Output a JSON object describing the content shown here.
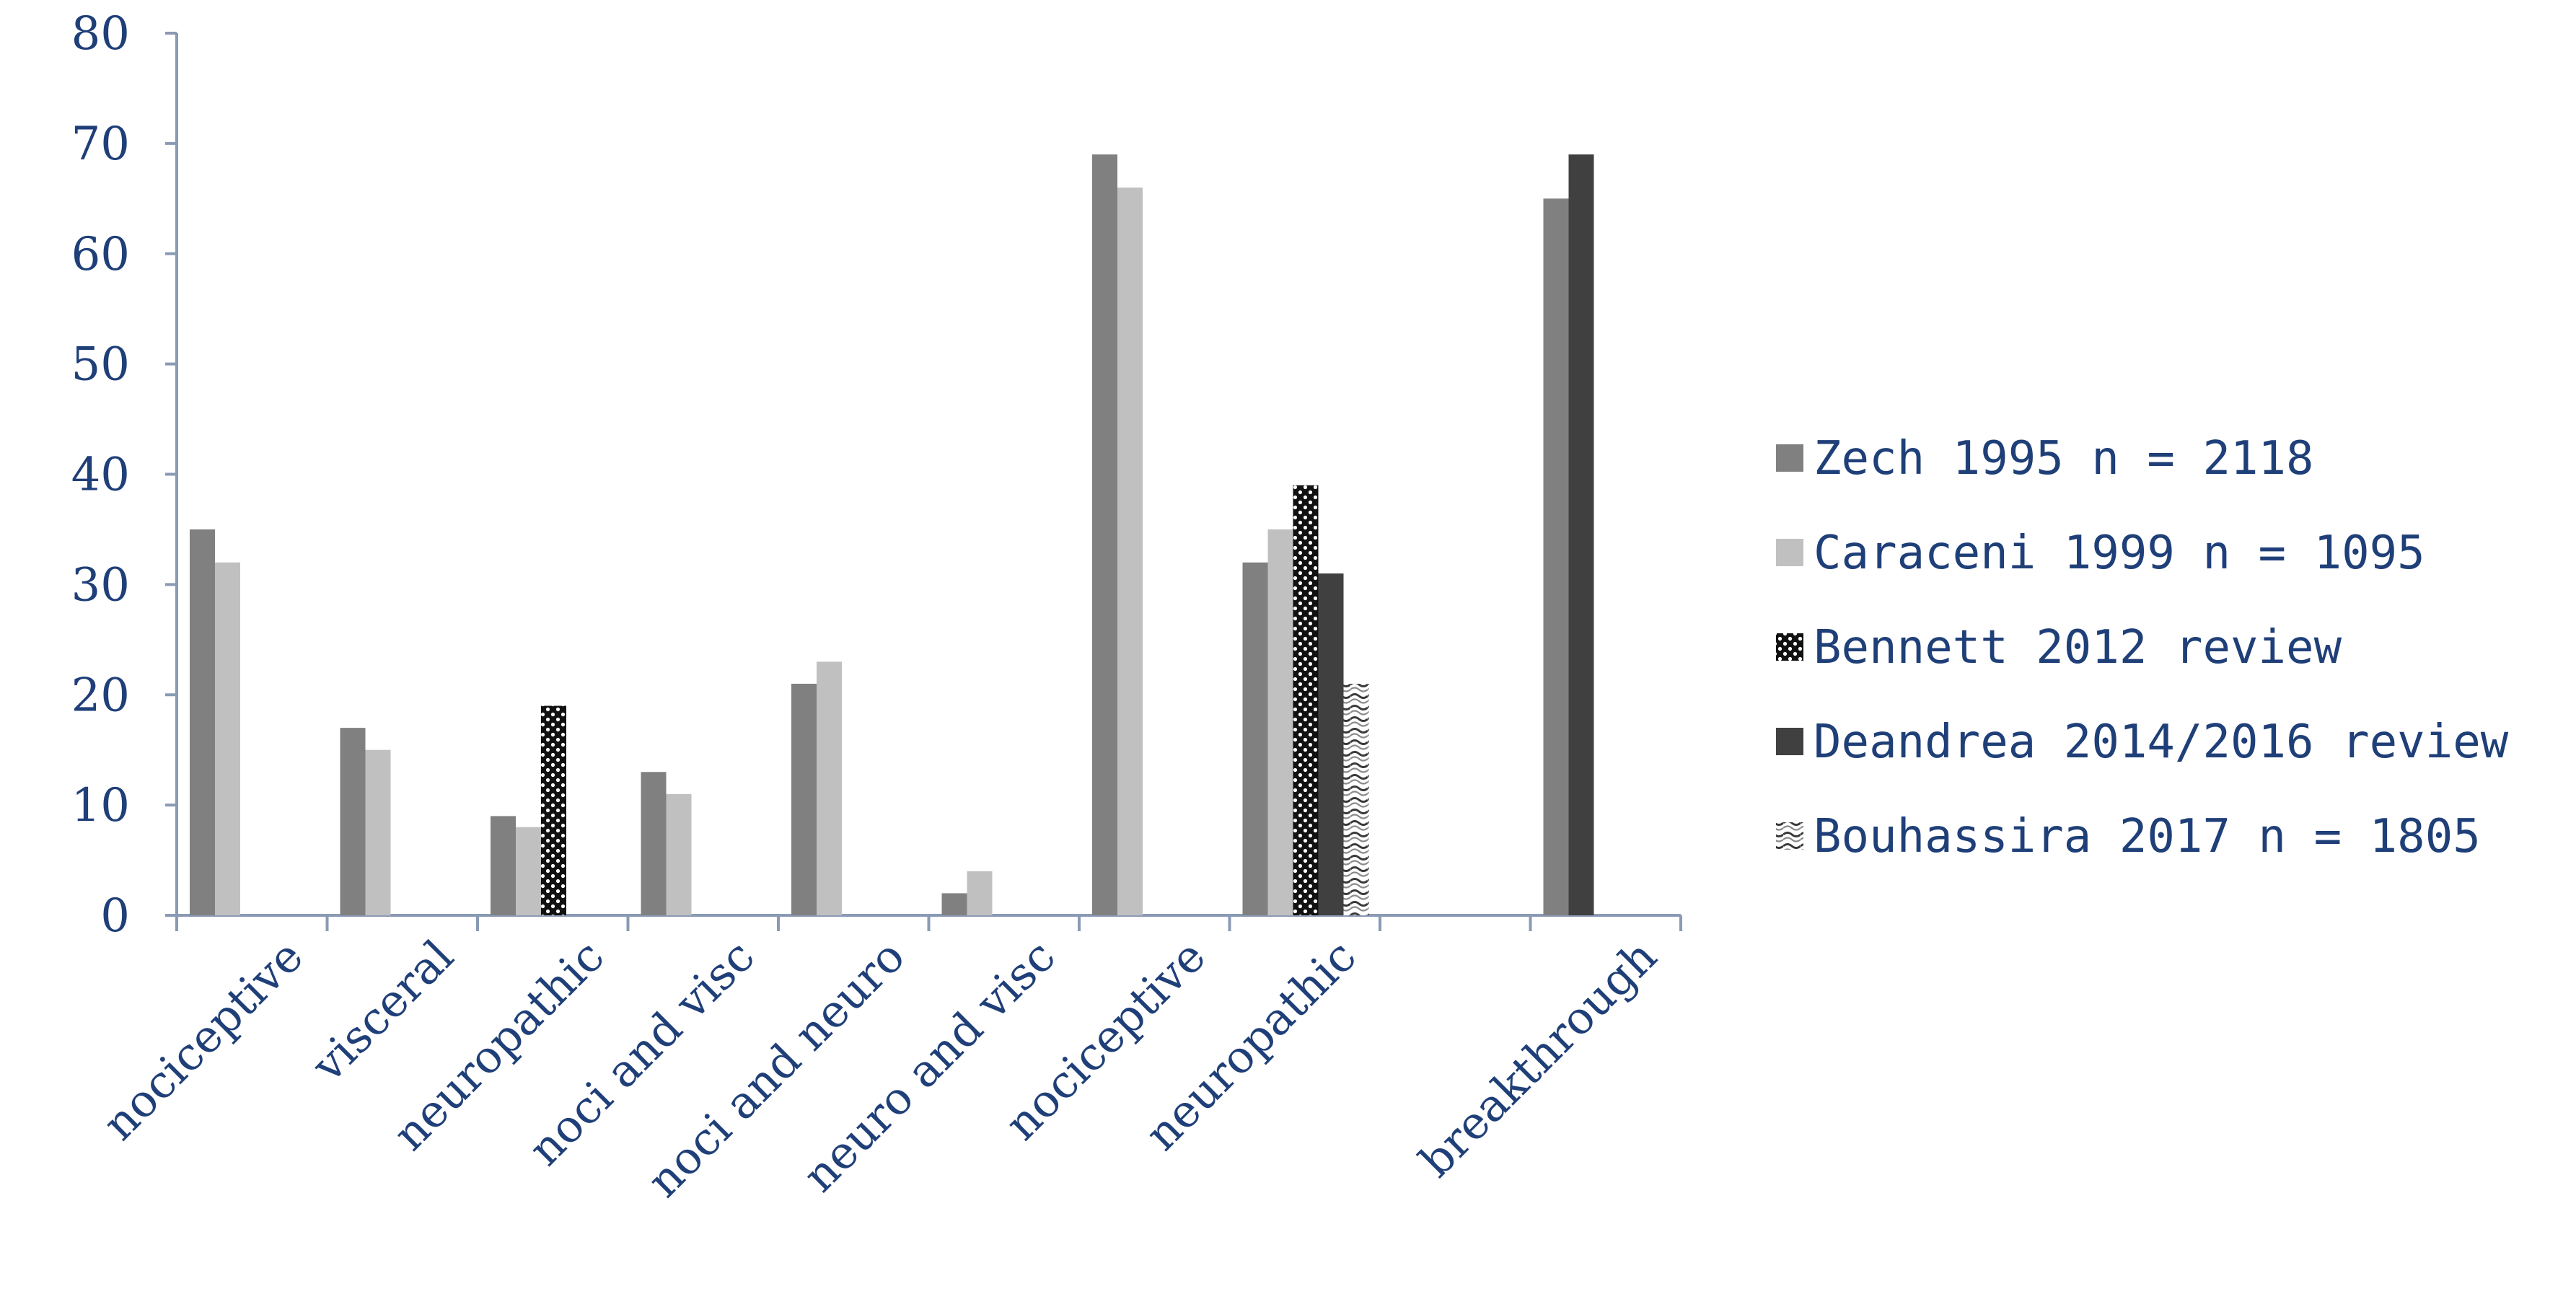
{
  "chart_data": {
    "type": "bar",
    "title": "",
    "xlabel": "",
    "ylabel": "",
    "ylim": [
      0,
      80
    ],
    "yticks": [
      0,
      10,
      20,
      30,
      40,
      50,
      60,
      70,
      80
    ],
    "grid": false,
    "legend_position": "right",
    "categories": [
      "nociceptive",
      "visceral",
      "neuropathic",
      "noci and visc",
      "noci and neuro",
      "neuro and visc",
      "nociceptive",
      "neuropathic",
      "",
      "breakthrough"
    ],
    "series": [
      {
        "name": "Zech 1995 n = 2118",
        "color": "#808080",
        "pattern": "solid",
        "values": [
          35,
          17,
          9,
          13,
          21,
          2,
          69,
          32,
          null,
          65
        ]
      },
      {
        "name": "Caraceni 1999 n = 1095",
        "color": "#c0c0c0",
        "pattern": "solid",
        "values": [
          32,
          15,
          8,
          11,
          23,
          4,
          66,
          35,
          null,
          null
        ]
      },
      {
        "name": "Bennett 2012 review",
        "color": "#1a1a1a",
        "pattern": "dots",
        "values": [
          null,
          null,
          19,
          null,
          null,
          null,
          null,
          39,
          null,
          null
        ]
      },
      {
        "name": "Deandrea 2014/2016 review",
        "color": "#404040",
        "pattern": "solid",
        "values": [
          null,
          null,
          null,
          null,
          null,
          null,
          null,
          31,
          null,
          69
        ]
      },
      {
        "name": "Bouhassira 2017 n = 1805",
        "color": "#505050",
        "pattern": "wave",
        "values": [
          null,
          null,
          null,
          null,
          null,
          null,
          null,
          21,
          null,
          null
        ]
      }
    ]
  }
}
